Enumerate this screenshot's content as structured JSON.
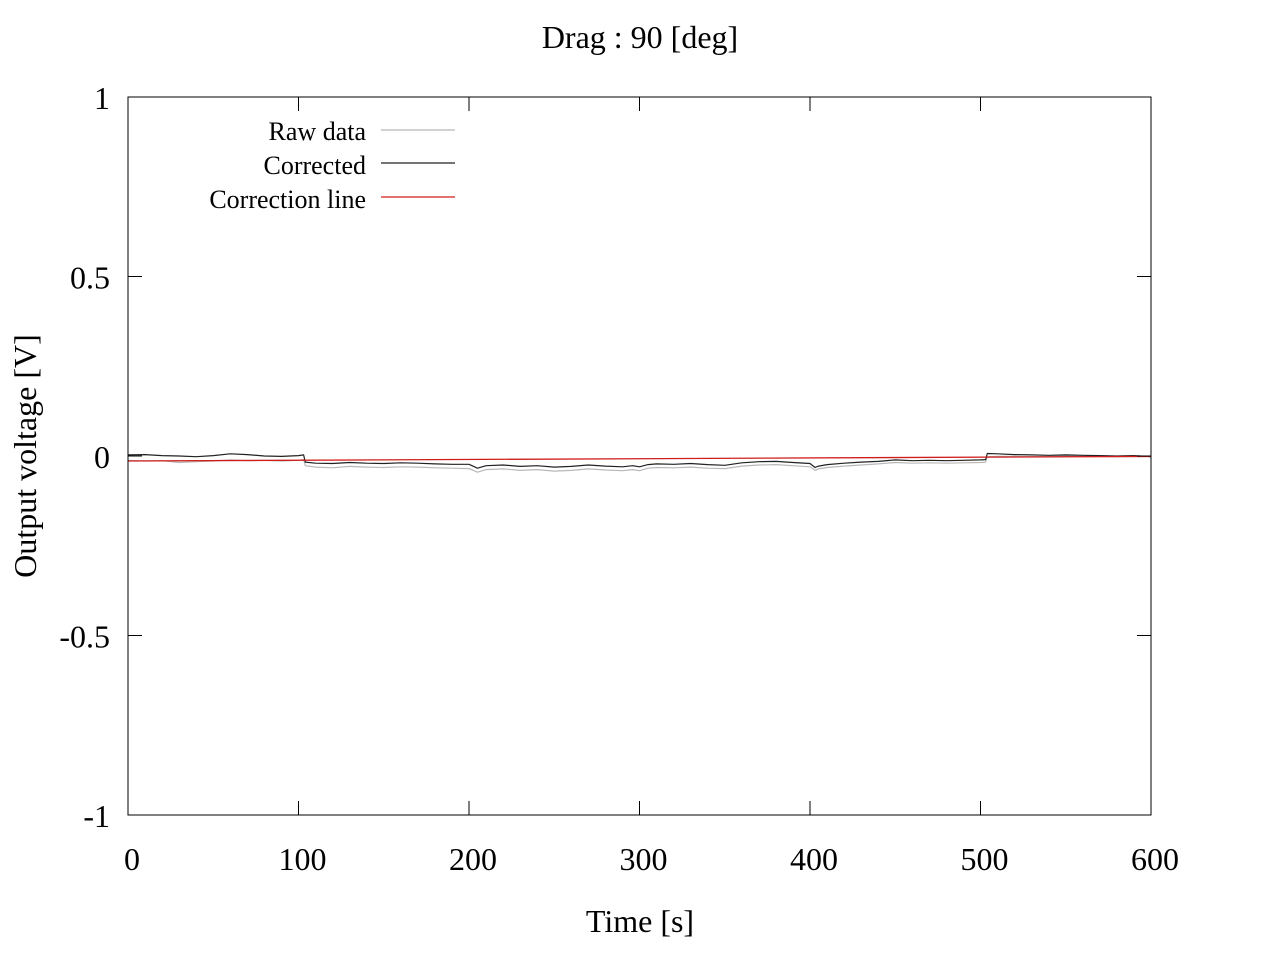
{
  "chart_data": {
    "type": "line",
    "title": "Drag : 90 [deg]",
    "xlabel": "Time [s]",
    "ylabel": "Output voltage [V]",
    "xlim": [
      0,
      600
    ],
    "ylim": [
      -1,
      1
    ],
    "x_ticks": [
      0,
      100,
      200,
      300,
      400,
      500,
      600
    ],
    "y_ticks": [
      -1,
      -0.5,
      0,
      0.5,
      1
    ],
    "x_tick_labels": [
      "0",
      "100",
      "200",
      "300",
      "400",
      "500",
      "600"
    ],
    "y_tick_labels": [
      "-1",
      "-0.5",
      "0",
      "0.5",
      "1"
    ],
    "grid": false,
    "legend_position": "top-left",
    "series": [
      {
        "name": "Raw data",
        "color": "#b8b8b8",
        "x": [
          0,
          10,
          20,
          30,
          40,
          50,
          60,
          70,
          80,
          90,
          100,
          103,
          104,
          110,
          120,
          130,
          140,
          150,
          160,
          170,
          180,
          190,
          200,
          205,
          210,
          220,
          230,
          240,
          250,
          260,
          270,
          280,
          290,
          296,
          300,
          305,
          310,
          320,
          330,
          340,
          350,
          360,
          370,
          380,
          390,
          400,
          403,
          405,
          410,
          420,
          430,
          440,
          450,
          460,
          470,
          480,
          490,
          500,
          503,
          504,
          510,
          520,
          530,
          540,
          550,
          560,
          570,
          580,
          590,
          600
        ],
        "y": [
          -0.012,
          -0.014,
          -0.013,
          -0.018,
          -0.016,
          -0.014,
          -0.011,
          -0.013,
          -0.012,
          -0.014,
          -0.012,
          -0.01,
          -0.027,
          -0.031,
          -0.033,
          -0.029,
          -0.031,
          -0.032,
          -0.03,
          -0.031,
          -0.033,
          -0.034,
          -0.035,
          -0.045,
          -0.038,
          -0.036,
          -0.04,
          -0.038,
          -0.042,
          -0.04,
          -0.036,
          -0.039,
          -0.041,
          -0.038,
          -0.041,
          -0.034,
          -0.032,
          -0.033,
          -0.031,
          -0.034,
          -0.035,
          -0.028,
          -0.025,
          -0.024,
          -0.027,
          -0.03,
          -0.04,
          -0.036,
          -0.032,
          -0.028,
          -0.025,
          -0.022,
          -0.018,
          -0.02,
          -0.019,
          -0.02,
          -0.019,
          -0.018,
          -0.017,
          -0.002,
          -0.001,
          -0.001,
          -0.002,
          -0.001,
          0.0,
          -0.001,
          -0.001,
          -0.002,
          -0.001,
          -0.002
        ]
      },
      {
        "name": "Corrected",
        "color": "#222222",
        "x": [
          0,
          10,
          20,
          30,
          40,
          50,
          60,
          70,
          80,
          90,
          100,
          103,
          104,
          110,
          120,
          130,
          140,
          150,
          160,
          170,
          180,
          190,
          200,
          205,
          210,
          220,
          230,
          240,
          250,
          260,
          270,
          280,
          290,
          296,
          300,
          305,
          310,
          320,
          330,
          340,
          350,
          360,
          370,
          380,
          390,
          400,
          403,
          405,
          410,
          420,
          430,
          440,
          450,
          460,
          470,
          480,
          490,
          500,
          503,
          504,
          510,
          520,
          530,
          540,
          550,
          560,
          570,
          580,
          590,
          600
        ],
        "y": [
          0.003,
          0.004,
          0.001,
          0.0,
          -0.002,
          0.001,
          0.006,
          0.004,
          0.0,
          -0.001,
          0.001,
          0.003,
          -0.017,
          -0.02,
          -0.021,
          -0.018,
          -0.02,
          -0.021,
          -0.019,
          -0.02,
          -0.022,
          -0.023,
          -0.023,
          -0.034,
          -0.027,
          -0.025,
          -0.029,
          -0.027,
          -0.031,
          -0.029,
          -0.025,
          -0.028,
          -0.03,
          -0.027,
          -0.03,
          -0.024,
          -0.022,
          -0.023,
          -0.021,
          -0.024,
          -0.026,
          -0.019,
          -0.016,
          -0.015,
          -0.018,
          -0.021,
          -0.032,
          -0.028,
          -0.024,
          -0.02,
          -0.017,
          -0.015,
          -0.011,
          -0.013,
          -0.012,
          -0.013,
          -0.012,
          -0.011,
          -0.01,
          0.007,
          0.006,
          0.004,
          0.003,
          0.002,
          0.003,
          0.002,
          0.001,
          0.0,
          0.001,
          -0.002
        ]
      },
      {
        "name": "Correction line",
        "color": "#d01c1c",
        "x": [
          0,
          600
        ],
        "y": [
          -0.014,
          -0.001
        ]
      }
    ]
  }
}
